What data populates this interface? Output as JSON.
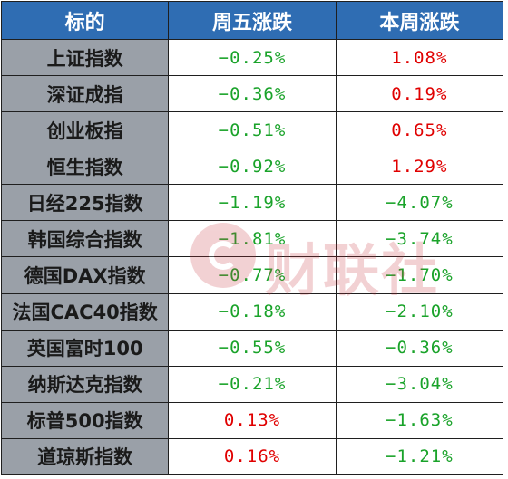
{
  "header": {
    "col_name": "标的",
    "col_friday": "周五涨跌",
    "col_week": "本周涨跌"
  },
  "colors": {
    "header_bg": "#2f6db3",
    "name_bg": "#9aa0a8",
    "up": "#e00000",
    "down": "#1aa32a"
  },
  "rows": [
    {
      "name": "上证指数",
      "friday": "−0.25%",
      "week": "1.08%"
    },
    {
      "name": "深证成指",
      "friday": "−0.36%",
      "week": "0.19%"
    },
    {
      "name": "创业板指",
      "friday": "−0.51%",
      "week": "0.65%"
    },
    {
      "name": "恒生指数",
      "friday": "−0.92%",
      "week": "1.29%"
    },
    {
      "name": "日经225指数",
      "friday": "−1.19%",
      "week": "−4.07%"
    },
    {
      "name": "韩国综合指数",
      "friday": "−1.81%",
      "week": "−3.74%"
    },
    {
      "name": "德国DAX指数",
      "friday": "−0.77%",
      "week": "−1.70%"
    },
    {
      "name": "法国CAC40指数",
      "friday": "−0.18%",
      "week": "−2.10%"
    },
    {
      "name": "英国富时100",
      "friday": "−0.55%",
      "week": "−0.36%"
    },
    {
      "name": "纳斯达克指数",
      "friday": "−0.21%",
      "week": "−3.04%"
    },
    {
      "name": "标普500指数",
      "friday": "0.13%",
      "week": "−1.63%"
    },
    {
      "name": "道琼斯指数",
      "friday": "0.16%",
      "week": "−1.21%"
    }
  ],
  "watermark": {
    "text": "财联社"
  }
}
